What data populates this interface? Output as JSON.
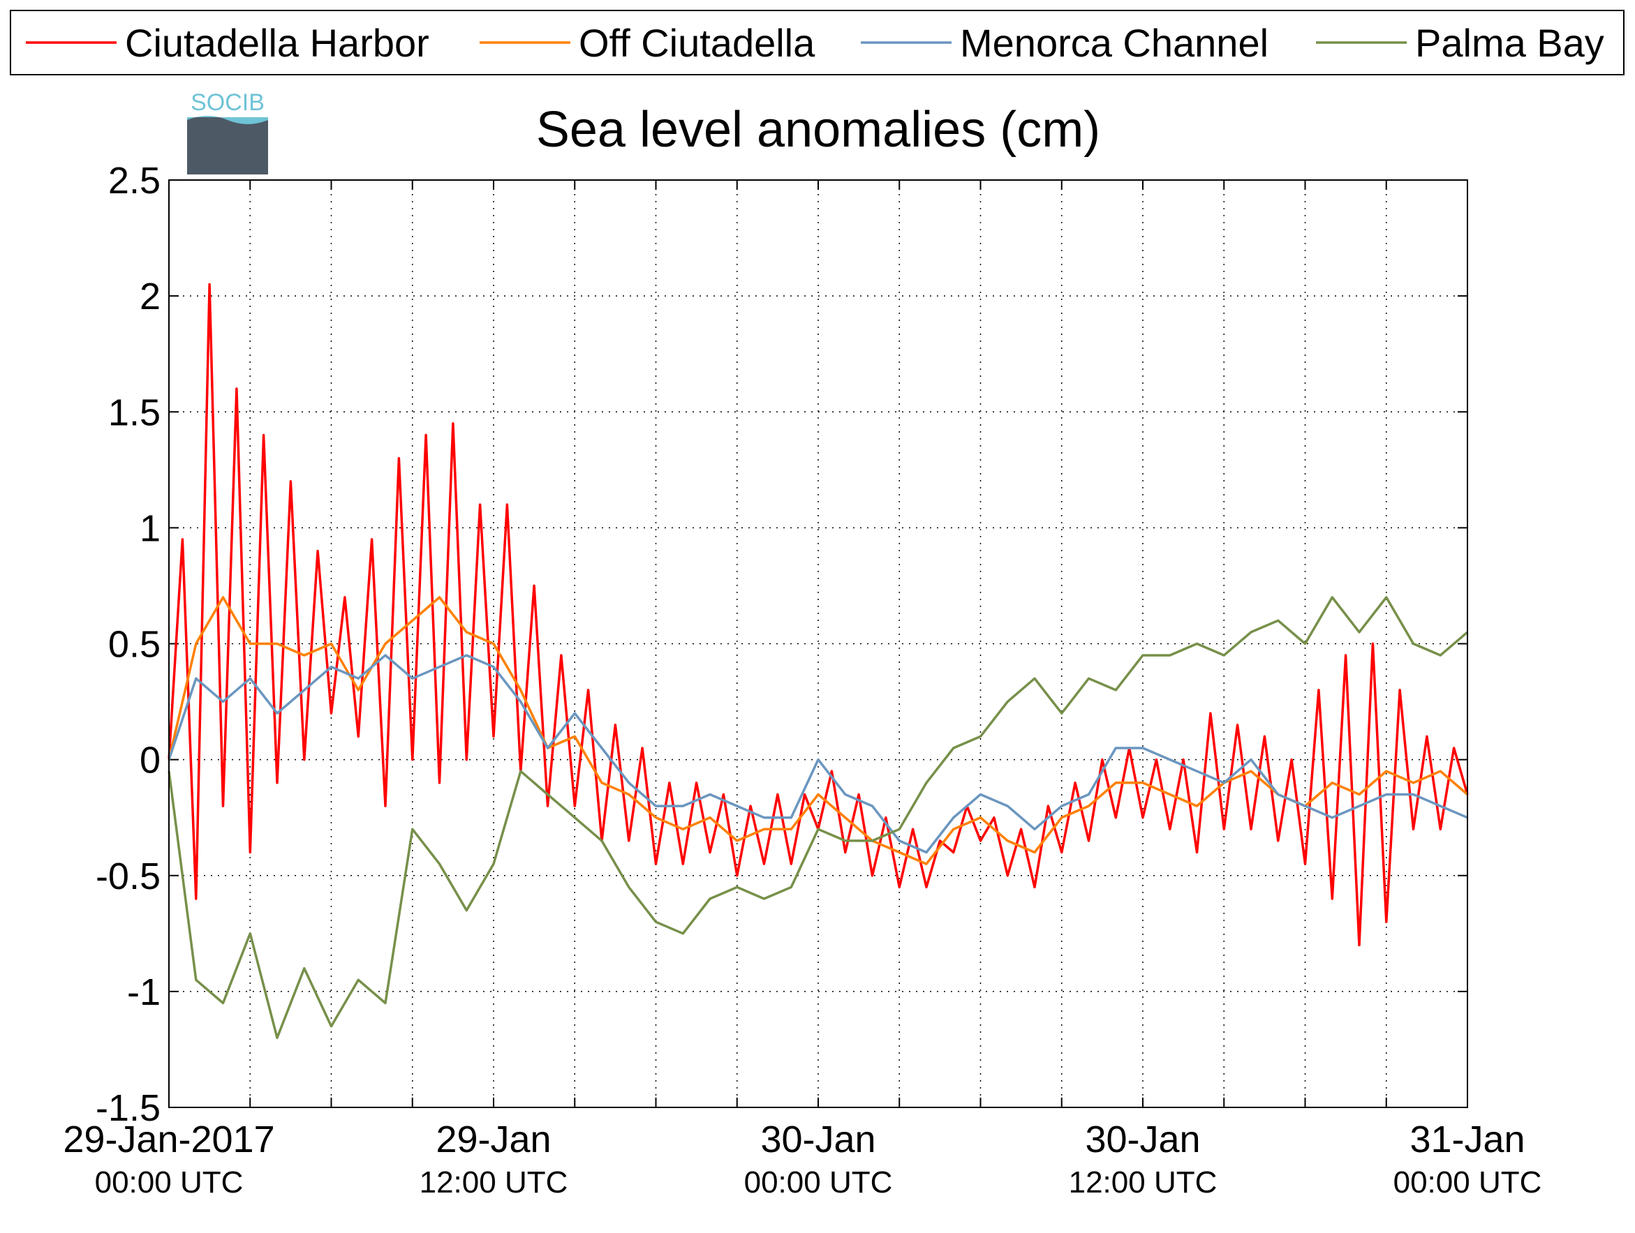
{
  "chart_data": {
    "type": "line",
    "title": "Sea level anomalies (cm)",
    "logo": "SOCIB",
    "xlim": [
      0,
      48
    ],
    "ylim": [
      -1.5,
      2.5
    ],
    "yticks": [
      -1.5,
      -1,
      -0.5,
      0,
      0.5,
      1,
      1.5,
      2,
      2.5
    ],
    "xticks": [
      {
        "value": 0,
        "label": [
          "29-Jan-2017",
          "00:00 UTC"
        ]
      },
      {
        "value": 3,
        "label": null
      },
      {
        "value": 6,
        "label": null
      },
      {
        "value": 9,
        "label": null
      },
      {
        "value": 12,
        "label": [
          "29-Jan",
          "12:00 UTC"
        ]
      },
      {
        "value": 15,
        "label": null
      },
      {
        "value": 18,
        "label": null
      },
      {
        "value": 21,
        "label": null
      },
      {
        "value": 24,
        "label": [
          "30-Jan",
          "00:00 UTC"
        ]
      },
      {
        "value": 27,
        "label": null
      },
      {
        "value": 30,
        "label": null
      },
      {
        "value": 33,
        "label": null
      },
      {
        "value": 36,
        "label": [
          "30-Jan",
          "12:00 UTC"
        ]
      },
      {
        "value": 39,
        "label": null
      },
      {
        "value": 42,
        "label": null
      },
      {
        "value": 45,
        "label": null
      },
      {
        "value": 48,
        "label": [
          "31-Jan",
          "00:00 UTC"
        ]
      }
    ],
    "grid": true,
    "legend": "top",
    "series": [
      {
        "name": "Ciutadella Harbor",
        "color": "#ff0000",
        "x": [
          0,
          0.5,
          1,
          1.5,
          2,
          2.5,
          3,
          3.5,
          4,
          4.5,
          5,
          5.5,
          6,
          6.5,
          7,
          7.5,
          8,
          8.5,
          9,
          9.5,
          10,
          10.5,
          11,
          11.5,
          12,
          12.5,
          13,
          13.5,
          14,
          14.5,
          15,
          15.5,
          16,
          16.5,
          17,
          17.5,
          18,
          18.5,
          19,
          19.5,
          20,
          20.5,
          21,
          21.5,
          22,
          22.5,
          23,
          23.5,
          24,
          24.5,
          25,
          25.5,
          26,
          26.5,
          27,
          27.5,
          28,
          28.5,
          29,
          29.5,
          30,
          30.5,
          31,
          31.5,
          32,
          32.5,
          33,
          33.5,
          34,
          34.5,
          35,
          35.5,
          36,
          36.5,
          37,
          37.5,
          38,
          38.5,
          39,
          39.5,
          40,
          40.5,
          41,
          41.5,
          42,
          42.5,
          43,
          43.5,
          44,
          44.5,
          45,
          45.5,
          46,
          46.5,
          47,
          47.5,
          48
        ],
        "values": [
          0,
          0.95,
          -0.6,
          2.05,
          -0.2,
          1.6,
          -0.4,
          1.4,
          -0.1,
          1.2,
          0.0,
          0.9,
          0.2,
          0.7,
          0.1,
          0.95,
          -0.2,
          1.3,
          0.0,
          1.4,
          -0.1,
          1.45,
          0.0,
          1.1,
          0.1,
          1.1,
          -0.05,
          0.75,
          -0.2,
          0.45,
          -0.2,
          0.3,
          -0.35,
          0.15,
          -0.35,
          0.05,
          -0.45,
          -0.1,
          -0.45,
          -0.1,
          -0.4,
          -0.15,
          -0.5,
          -0.2,
          -0.45,
          -0.15,
          -0.45,
          -0.15,
          -0.3,
          -0.05,
          -0.4,
          -0.15,
          -0.5,
          -0.25,
          -0.55,
          -0.3,
          -0.55,
          -0.35,
          -0.4,
          -0.2,
          -0.35,
          -0.25,
          -0.5,
          -0.3,
          -0.55,
          -0.2,
          -0.4,
          -0.1,
          -0.35,
          0.0,
          -0.25,
          0.05,
          -0.25,
          0.0,
          -0.3,
          0.0,
          -0.4,
          0.2,
          -0.3,
          0.15,
          -0.3,
          0.1,
          -0.35,
          0.0,
          -0.45,
          0.3,
          -0.6,
          0.45,
          -0.8,
          0.5,
          -0.7,
          0.3,
          -0.3,
          0.1,
          -0.3,
          0.05,
          -0.15
        ]
      },
      {
        "name": "Off Ciutadella",
        "color": "#ff8000",
        "x": [
          0,
          1,
          2,
          3,
          4,
          5,
          6,
          7,
          8,
          9,
          10,
          11,
          12,
          13,
          14,
          15,
          16,
          17,
          18,
          19,
          20,
          21,
          22,
          23,
          24,
          25,
          26,
          27,
          28,
          29,
          30,
          31,
          32,
          33,
          34,
          35,
          36,
          37,
          38,
          39,
          40,
          41,
          42,
          43,
          44,
          45,
          46,
          47,
          48
        ],
        "values": [
          0,
          0.5,
          0.7,
          0.5,
          0.5,
          0.45,
          0.5,
          0.3,
          0.5,
          0.6,
          0.7,
          0.55,
          0.5,
          0.3,
          0.05,
          0.1,
          -0.1,
          -0.15,
          -0.25,
          -0.3,
          -0.25,
          -0.35,
          -0.3,
          -0.3,
          -0.15,
          -0.25,
          -0.35,
          -0.4,
          -0.45,
          -0.3,
          -0.25,
          -0.35,
          -0.4,
          -0.25,
          -0.2,
          -0.1,
          -0.1,
          -0.15,
          -0.2,
          -0.1,
          -0.05,
          -0.15,
          -0.2,
          -0.1,
          -0.15,
          -0.05,
          -0.1,
          -0.05,
          -0.15
        ]
      },
      {
        "name": "Menorca Channel",
        "color": "#6b96bf",
        "x": [
          0,
          1,
          2,
          3,
          4,
          5,
          6,
          7,
          8,
          9,
          10,
          11,
          12,
          13,
          14,
          15,
          16,
          17,
          18,
          19,
          20,
          21,
          22,
          23,
          24,
          25,
          26,
          27,
          28,
          29,
          30,
          31,
          32,
          33,
          34,
          35,
          36,
          37,
          38,
          39,
          40,
          41,
          42,
          43,
          44,
          45,
          46,
          47,
          48
        ],
        "values": [
          0,
          0.35,
          0.25,
          0.35,
          0.2,
          0.3,
          0.4,
          0.35,
          0.45,
          0.35,
          0.4,
          0.45,
          0.4,
          0.25,
          0.05,
          0.2,
          0.05,
          -0.1,
          -0.2,
          -0.2,
          -0.15,
          -0.2,
          -0.25,
          -0.25,
          0.0,
          -0.15,
          -0.2,
          -0.35,
          -0.4,
          -0.25,
          -0.15,
          -0.2,
          -0.3,
          -0.2,
          -0.15,
          0.05,
          0.05,
          0.0,
          -0.05,
          -0.1,
          0.0,
          -0.15,
          -0.2,
          -0.25,
          -0.2,
          -0.15,
          -0.15,
          -0.2,
          -0.25
        ]
      },
      {
        "name": "Palma Bay",
        "color": "#77904a",
        "x": [
          0,
          1,
          2,
          3,
          4,
          5,
          6,
          7,
          8,
          9,
          10,
          11,
          12,
          13,
          14,
          15,
          16,
          17,
          18,
          19,
          20,
          21,
          22,
          23,
          24,
          25,
          26,
          27,
          28,
          29,
          30,
          31,
          32,
          33,
          34,
          35,
          36,
          37,
          38,
          39,
          40,
          41,
          42,
          43,
          44,
          45,
          46,
          47,
          48
        ],
        "values": [
          -0.05,
          -0.95,
          -1.05,
          -0.75,
          -1.2,
          -0.9,
          -1.15,
          -0.95,
          -1.05,
          -0.3,
          -0.45,
          -0.65,
          -0.45,
          -0.05,
          -0.15,
          -0.25,
          -0.35,
          -0.55,
          -0.7,
          -0.75,
          -0.6,
          -0.55,
          -0.6,
          -0.55,
          -0.3,
          -0.35,
          -0.35,
          -0.3,
          -0.1,
          0.05,
          0.1,
          0.25,
          0.35,
          0.2,
          0.35,
          0.3,
          0.45,
          0.45,
          0.5,
          0.45,
          0.55,
          0.6,
          0.5,
          0.7,
          0.55,
          0.7,
          0.5,
          0.45,
          0.55
        ]
      }
    ]
  }
}
